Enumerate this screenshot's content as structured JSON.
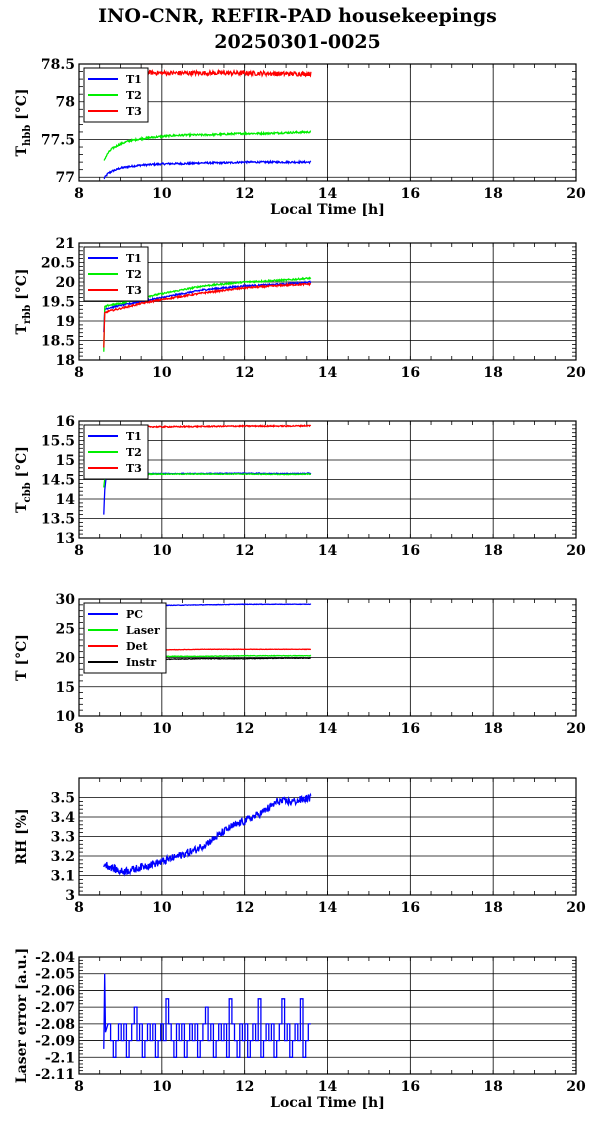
{
  "title_line1": "INO-CNR, REFIR-PAD housekeepings",
  "title_line2": "20250301-0025",
  "chart_data": [
    {
      "type": "line",
      "xlabel": "Local Time [h]",
      "ylabel": "T",
      "ylabel_sub": "hbb",
      "ylabel_unit": "[°C]",
      "xlim": [
        8,
        20
      ],
      "ylim": [
        76.95,
        78.5
      ],
      "xticks": [
        8,
        10,
        12,
        14,
        16,
        18,
        20
      ],
      "yticks": [
        77,
        77.5,
        78,
        78.5
      ],
      "ytick_labels": [
        "77",
        "77.5",
        "78",
        "78.5"
      ],
      "legend": "top-left",
      "series": [
        {
          "name": "T1",
          "color": "#0000ff",
          "x": [
            8.6,
            8.7,
            8.8,
            9.0,
            9.2,
            9.5,
            9.8,
            10.2,
            10.6,
            11.0,
            11.5,
            12.0,
            12.5,
            13.0,
            13.6
          ],
          "y": [
            76.98,
            77.05,
            77.08,
            77.12,
            77.14,
            77.16,
            77.17,
            77.18,
            77.18,
            77.19,
            77.19,
            77.2,
            77.2,
            77.2,
            77.2
          ],
          "noise": 0.012
        },
        {
          "name": "T2",
          "color": "#00ee00",
          "x": [
            8.6,
            8.7,
            8.8,
            9.0,
            9.2,
            9.5,
            9.8,
            10.2,
            10.6,
            11.0,
            11.5,
            12.0,
            12.5,
            13.0,
            13.6
          ],
          "y": [
            77.22,
            77.32,
            77.38,
            77.44,
            77.48,
            77.51,
            77.53,
            77.55,
            77.56,
            77.56,
            77.57,
            77.58,
            77.58,
            77.59,
            77.6
          ],
          "noise": 0.012
        },
        {
          "name": "T3",
          "color": "#ff0000",
          "x": [
            8.6,
            9.0,
            10.0,
            11.0,
            12.0,
            13.0,
            13.6
          ],
          "y": [
            78.4,
            78.4,
            78.38,
            78.38,
            78.38,
            78.37,
            78.37
          ],
          "noise": 0.03
        }
      ]
    },
    {
      "type": "line",
      "xlabel": "",
      "ylabel": "T",
      "ylabel_sub": "rbb",
      "ylabel_unit": "[°C]",
      "xlim": [
        8,
        20
      ],
      "ylim": [
        18,
        21
      ],
      "xticks": [
        8,
        10,
        12,
        14,
        16,
        18,
        20
      ],
      "yticks": [
        18,
        18.5,
        19,
        19.5,
        20,
        20.5,
        21
      ],
      "ytick_labels": [
        "18",
        "18.5",
        "19",
        "19.5",
        "20",
        "20.5",
        "21"
      ],
      "legend": "top-left",
      "series": [
        {
          "name": "T1",
          "color": "#0000ff",
          "x": [
            8.6,
            8.62,
            8.7,
            9.0,
            9.5,
            10.0,
            11.0,
            12.0,
            13.0,
            13.6
          ],
          "y": [
            18.7,
            19.3,
            19.33,
            19.4,
            19.5,
            19.6,
            19.8,
            19.9,
            19.95,
            20.0
          ],
          "noise": 0.02
        },
        {
          "name": "T2",
          "color": "#00ee00",
          "x": [
            8.6,
            8.62,
            8.7,
            9.0,
            9.5,
            10.0,
            11.0,
            12.0,
            13.0,
            13.6
          ],
          "y": [
            18.2,
            19.35,
            19.4,
            19.45,
            19.6,
            19.7,
            19.9,
            20.0,
            20.05,
            20.1
          ],
          "noise": 0.02
        },
        {
          "name": "T3",
          "color": "#ff0000",
          "x": [
            8.6,
            8.62,
            8.7,
            9.0,
            9.5,
            10.0,
            11.0,
            12.0,
            13.0,
            13.6
          ],
          "y": [
            18.3,
            19.2,
            19.25,
            19.32,
            19.45,
            19.55,
            19.72,
            19.85,
            19.92,
            19.95
          ],
          "noise": 0.02
        }
      ]
    },
    {
      "type": "line",
      "xlabel": "",
      "ylabel": "T",
      "ylabel_sub": "cbb",
      "ylabel_unit": "[°C]",
      "xlim": [
        8,
        20
      ],
      "ylim": [
        13,
        16
      ],
      "xticks": [
        8,
        10,
        12,
        14,
        16,
        18,
        20
      ],
      "yticks": [
        13,
        13.5,
        14,
        14.5,
        15,
        15.5,
        16
      ],
      "ytick_labels": [
        "13",
        "13.5",
        "14",
        "14.5",
        "15",
        "15.5",
        "16"
      ],
      "legend": "top-left",
      "series": [
        {
          "name": "T1",
          "color": "#0000ff",
          "x": [
            8.6,
            8.62,
            8.66,
            8.7,
            9.0,
            10.0,
            11.0,
            12.0,
            13.0,
            13.6
          ],
          "y": [
            13.6,
            14.2,
            14.6,
            14.65,
            14.65,
            14.65,
            14.65,
            14.66,
            14.65,
            14.66
          ],
          "noise": 0.01
        },
        {
          "name": "T2",
          "color": "#00ee00",
          "x": [
            8.6,
            8.62,
            8.66,
            8.7,
            9.0,
            10.0,
            11.0,
            12.0,
            13.0,
            13.6
          ],
          "y": [
            14.3,
            14.5,
            14.62,
            14.63,
            14.64,
            14.64,
            14.64,
            14.64,
            14.63,
            14.64
          ],
          "noise": 0.01
        },
        {
          "name": "T3",
          "color": "#ff0000",
          "x": [
            8.6,
            9.0,
            10.0,
            11.0,
            12.0,
            13.0,
            13.6
          ],
          "y": [
            15.85,
            15.86,
            15.85,
            15.86,
            15.87,
            15.87,
            15.88
          ],
          "noise": 0.015
        }
      ]
    },
    {
      "type": "line",
      "xlabel": "",
      "ylabel": "T [°C]",
      "ylabel_sub": "",
      "ylabel_unit": "",
      "xlim": [
        8,
        20
      ],
      "ylim": [
        10,
        30
      ],
      "xticks": [
        8,
        10,
        12,
        14,
        16,
        18,
        20
      ],
      "yticks": [
        10,
        15,
        20,
        25,
        30
      ],
      "ytick_labels": [
        "10",
        "15",
        "20",
        "25",
        "30"
      ],
      "legend": "top-left",
      "series": [
        {
          "name": "PC",
          "color": "#0000ff",
          "x": [
            8.6,
            9.0,
            10.0,
            11.0,
            12.0,
            13.0,
            13.6
          ],
          "y": [
            28.7,
            28.8,
            28.9,
            29.0,
            29.1,
            29.1,
            29.1
          ],
          "noise": 0.04
        },
        {
          "name": "Laser",
          "color": "#00ee00",
          "x": [
            8.6,
            9.0,
            10.0,
            11.0,
            12.0,
            13.0,
            13.6
          ],
          "y": [
            20.1,
            20.1,
            20.2,
            20.2,
            20.3,
            20.3,
            20.3
          ],
          "noise": 0.05
        },
        {
          "name": "Det",
          "color": "#ff0000",
          "x": [
            8.6,
            9.0,
            10.0,
            11.0,
            12.0,
            13.0,
            13.6
          ],
          "y": [
            21.3,
            21.3,
            21.3,
            21.4,
            21.4,
            21.4,
            21.4
          ],
          "noise": 0.03
        },
        {
          "name": "Instr",
          "color": "#000000",
          "x": [
            8.6,
            9.0,
            10.0,
            11.0,
            12.0,
            13.0,
            13.6
          ],
          "y": [
            19.6,
            19.6,
            19.7,
            19.8,
            19.8,
            19.9,
            19.9
          ],
          "noise": 0.05
        }
      ]
    },
    {
      "type": "line",
      "xlabel": "",
      "ylabel": "RH [%]",
      "ylabel_sub": "",
      "ylabel_unit": "",
      "xlim": [
        8,
        20
      ],
      "ylim": [
        3,
        3.6
      ],
      "xticks": [
        8,
        10,
        12,
        14,
        16,
        18,
        20
      ],
      "yticks": [
        3,
        3.1,
        3.2,
        3.3,
        3.4,
        3.5
      ],
      "ytick_labels": [
        "3",
        "3.1",
        "3.2",
        "3.3",
        "3.4",
        "3.5"
      ],
      "legend": "none",
      "series": [
        {
          "name": "",
          "color": "#0000ff",
          "x": [
            8.6,
            8.8,
            9.0,
            9.3,
            9.6,
            10.0,
            10.4,
            10.8,
            11.2,
            11.6,
            12.0,
            12.4,
            12.8,
            13.2,
            13.6
          ],
          "y": [
            3.16,
            3.14,
            3.12,
            3.13,
            3.15,
            3.17,
            3.2,
            3.23,
            3.28,
            3.34,
            3.38,
            3.42,
            3.48,
            3.48,
            3.5
          ],
          "noise": 0.02
        }
      ]
    },
    {
      "type": "line",
      "xlabel": "Local Time [h]",
      "ylabel": "Laser error [a.u.]",
      "ylabel_sub": "",
      "ylabel_unit": "",
      "xlim": [
        8,
        20
      ],
      "ylim": [
        -2.11,
        -2.04
      ],
      "xticks": [
        8,
        10,
        12,
        14,
        16,
        18,
        20
      ],
      "yticks": [
        -2.11,
        -2.1,
        -2.09,
        -2.08,
        -2.07,
        -2.06,
        -2.05,
        -2.04
      ],
      "ytick_labels": [
        "-2.11",
        "-2.1",
        "-2.09",
        "-2.08",
        "-2.07",
        "-2.06",
        "-2.05",
        "-2.04"
      ],
      "legend": "none",
      "series": [
        {
          "name": "",
          "color": "#0000ff",
          "x": [
            8.6,
            8.62,
            8.64,
            8.7,
            13.6
          ],
          "y": [
            -2.095,
            -2.05,
            -2.085,
            -2.09,
            -2.085
          ],
          "noise": 0,
          "steps": [
            -2.08,
            -2.09,
            -2.1,
            -2.09,
            -2.08,
            -2.09,
            -2.08,
            -2.1,
            -2.09,
            -2.08,
            -2.07,
            -2.09,
            -2.08,
            -2.1,
            -2.09,
            -2.08,
            -2.09,
            -2.08,
            -2.1,
            -2.09,
            -2.08,
            -2.09,
            -2.065,
            -2.08,
            -2.09,
            -2.1,
            -2.08,
            -2.09,
            -2.08,
            -2.1,
            -2.09,
            -2.08,
            -2.09,
            -2.08,
            -2.1,
            -2.09,
            -2.08,
            -2.07,
            -2.09,
            -2.08,
            -2.1,
            -2.09,
            -2.08,
            -2.09,
            -2.08,
            -2.1,
            -2.065,
            -2.08,
            -2.09,
            -2.1,
            -2.08,
            -2.09,
            -2.08,
            -2.1,
            -2.09,
            -2.08,
            -2.09,
            -2.065,
            -2.1,
            -2.09,
            -2.08,
            -2.09,
            -2.08,
            -2.1,
            -2.09,
            -2.08,
            -2.065,
            -2.09,
            -2.08,
            -2.1,
            -2.09,
            -2.08,
            -2.09,
            -2.065,
            -2.1,
            -2.09,
            -2.08
          ]
        }
      ]
    }
  ]
}
